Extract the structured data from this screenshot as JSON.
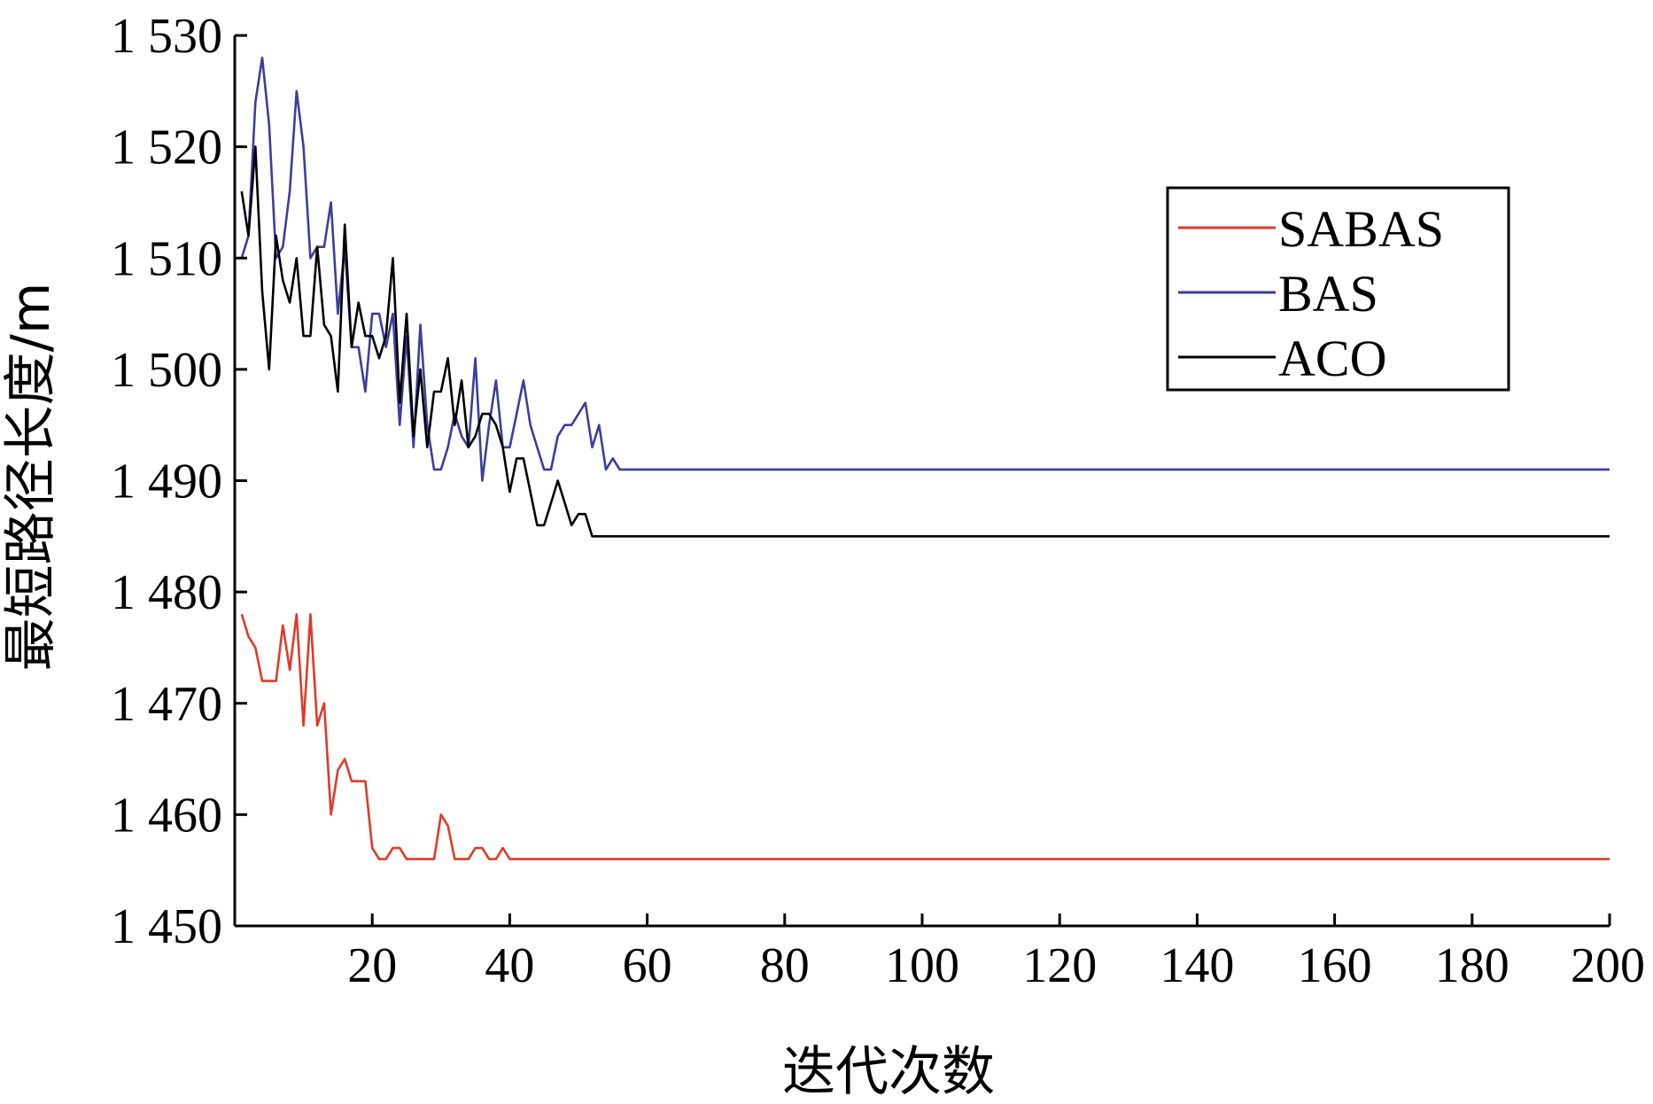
{
  "chart_data": {
    "type": "line",
    "title": "",
    "xlabel": "迭代次数",
    "ylabel": "最短路径长度/m",
    "xlim": [
      0,
      200
    ],
    "ylim": [
      1450,
      1530
    ],
    "x_ticks": [
      20,
      40,
      60,
      80,
      100,
      120,
      140,
      160,
      180,
      200
    ],
    "x_tick_labels": [
      "20",
      "40",
      "60",
      "80",
      "100",
      "120",
      "140",
      "160",
      "180",
      "200"
    ],
    "y_ticks": [
      1450,
      1460,
      1470,
      1480,
      1490,
      1500,
      1510,
      1520,
      1530
    ],
    "y_tick_labels": [
      "1 450",
      "1 460",
      "1 470",
      "1 480",
      "1 490",
      "1 500",
      "1 510",
      "1 520",
      "1 530"
    ],
    "grid": false,
    "legend_position": "top-right",
    "series": [
      {
        "name": "SABAS",
        "color": "#e03a2a",
        "points": [
          [
            1,
            1478
          ],
          [
            2,
            1476
          ],
          [
            3,
            1475
          ],
          [
            4,
            1472
          ],
          [
            5,
            1472
          ],
          [
            6,
            1472
          ],
          [
            7,
            1477
          ],
          [
            8,
            1473
          ],
          [
            9,
            1478
          ],
          [
            10,
            1468
          ],
          [
            11,
            1478
          ],
          [
            12,
            1468
          ],
          [
            13,
            1470
          ],
          [
            14,
            1460
          ],
          [
            15,
            1464
          ],
          [
            16,
            1465
          ],
          [
            17,
            1463
          ],
          [
            18,
            1463
          ],
          [
            19,
            1463
          ],
          [
            20,
            1457
          ],
          [
            21,
            1456
          ],
          [
            22,
            1456
          ],
          [
            23,
            1457
          ],
          [
            24,
            1457
          ],
          [
            25,
            1456
          ],
          [
            26,
            1456
          ],
          [
            27,
            1456
          ],
          [
            28,
            1456
          ],
          [
            29,
            1456
          ],
          [
            30,
            1460
          ],
          [
            31,
            1459
          ],
          [
            32,
            1456
          ],
          [
            33,
            1456
          ],
          [
            34,
            1456
          ],
          [
            35,
            1457
          ],
          [
            36,
            1457
          ],
          [
            37,
            1456
          ],
          [
            38,
            1456
          ],
          [
            39,
            1457
          ],
          [
            40,
            1456
          ],
          [
            50,
            1456
          ],
          [
            100,
            1456
          ],
          [
            150,
            1456
          ],
          [
            200,
            1456
          ]
        ]
      },
      {
        "name": "BAS",
        "color": "#3b3e9c",
        "points": [
          [
            1,
            1510
          ],
          [
            2,
            1512
          ],
          [
            3,
            1524
          ],
          [
            4,
            1528
          ],
          [
            5,
            1522
          ],
          [
            6,
            1510
          ],
          [
            7,
            1511
          ],
          [
            8,
            1516
          ],
          [
            9,
            1525
          ],
          [
            10,
            1520
          ],
          [
            11,
            1510
          ],
          [
            12,
            1511
          ],
          [
            13,
            1511
          ],
          [
            14,
            1515
          ],
          [
            15,
            1505
          ],
          [
            16,
            1511
          ],
          [
            17,
            1502
          ],
          [
            18,
            1502
          ],
          [
            19,
            1498
          ],
          [
            20,
            1505
          ],
          [
            21,
            1505
          ],
          [
            22,
            1502
          ],
          [
            23,
            1505
          ],
          [
            24,
            1495
          ],
          [
            25,
            1503
          ],
          [
            26,
            1493
          ],
          [
            27,
            1504
          ],
          [
            28,
            1495
          ],
          [
            29,
            1491
          ],
          [
            30,
            1491
          ],
          [
            31,
            1493
          ],
          [
            32,
            1496
          ],
          [
            33,
            1494
          ],
          [
            34,
            1493
          ],
          [
            35,
            1501
          ],
          [
            36,
            1490
          ],
          [
            37,
            1495
          ],
          [
            38,
            1499
          ],
          [
            39,
            1493
          ],
          [
            40,
            1493
          ],
          [
            41,
            1496
          ],
          [
            42,
            1499
          ],
          [
            43,
            1495
          ],
          [
            44,
            1493
          ],
          [
            45,
            1491
          ],
          [
            46,
            1491
          ],
          [
            47,
            1494
          ],
          [
            48,
            1495
          ],
          [
            49,
            1495
          ],
          [
            50,
            1496
          ],
          [
            51,
            1497
          ],
          [
            52,
            1493
          ],
          [
            53,
            1495
          ],
          [
            54,
            1491
          ],
          [
            55,
            1492
          ],
          [
            56,
            1491
          ],
          [
            60,
            1491
          ],
          [
            100,
            1491
          ],
          [
            150,
            1491
          ],
          [
            200,
            1491
          ]
        ]
      },
      {
        "name": "ACO",
        "color": "#000000",
        "points": [
          [
            1,
            1516
          ],
          [
            2,
            1512
          ],
          [
            3,
            1520
          ],
          [
            4,
            1507
          ],
          [
            5,
            1500
          ],
          [
            6,
            1512
          ],
          [
            7,
            1508
          ],
          [
            8,
            1506
          ],
          [
            9,
            1510
          ],
          [
            10,
            1503
          ],
          [
            11,
            1503
          ],
          [
            12,
            1511
          ],
          [
            13,
            1504
          ],
          [
            14,
            1503
          ],
          [
            15,
            1498
          ],
          [
            16,
            1513
          ],
          [
            17,
            1502
          ],
          [
            18,
            1506
          ],
          [
            19,
            1503
          ],
          [
            20,
            1503
          ],
          [
            21,
            1501
          ],
          [
            22,
            1503
          ],
          [
            23,
            1510
          ],
          [
            24,
            1497
          ],
          [
            25,
            1505
          ],
          [
            26,
            1494
          ],
          [
            27,
            1500
          ],
          [
            28,
            1493
          ],
          [
            29,
            1498
          ],
          [
            30,
            1498
          ],
          [
            31,
            1501
          ],
          [
            32,
            1495
          ],
          [
            33,
            1499
          ],
          [
            34,
            1493
          ],
          [
            35,
            1494
          ],
          [
            36,
            1496
          ],
          [
            37,
            1496
          ],
          [
            38,
            1495
          ],
          [
            39,
            1493
          ],
          [
            40,
            1489
          ],
          [
            41,
            1492
          ],
          [
            42,
            1492
          ],
          [
            43,
            1489
          ],
          [
            44,
            1486
          ],
          [
            45,
            1486
          ],
          [
            46,
            1488
          ],
          [
            47,
            1490
          ],
          [
            48,
            1488
          ],
          [
            49,
            1486
          ],
          [
            50,
            1487
          ],
          [
            51,
            1487
          ],
          [
            52,
            1485
          ],
          [
            60,
            1485
          ],
          [
            100,
            1485
          ],
          [
            150,
            1485
          ],
          [
            200,
            1485
          ]
        ]
      }
    ]
  }
}
